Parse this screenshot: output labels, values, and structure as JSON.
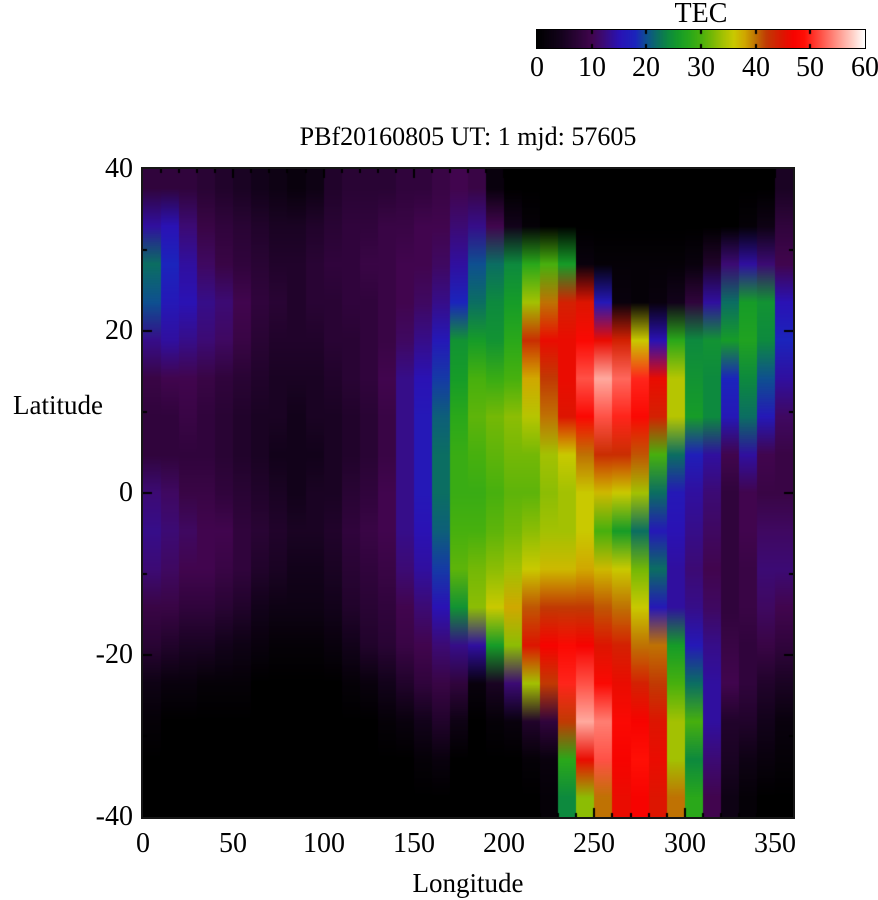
{
  "colorbar": {
    "title": "TEC",
    "ticks": [
      "0",
      "10",
      "20",
      "30",
      "40",
      "50",
      "60"
    ],
    "min": 0,
    "max": 60,
    "stops": [
      [
        0,
        "#000000"
      ],
      [
        4,
        "#12021a"
      ],
      [
        8,
        "#30043c"
      ],
      [
        10,
        "#41054e"
      ],
      [
        12,
        "#3c0a74"
      ],
      [
        15,
        "#2a12b4"
      ],
      [
        18,
        "#1b24bc"
      ],
      [
        20,
        "#0e5090"
      ],
      [
        22,
        "#0b6e62"
      ],
      [
        24,
        "#0d8a3e"
      ],
      [
        26,
        "#169c28"
      ],
      [
        28,
        "#2aa81a"
      ],
      [
        30,
        "#47b00e"
      ],
      [
        32,
        "#74b806"
      ],
      [
        34,
        "#a3c102"
      ],
      [
        36,
        "#c9c900"
      ],
      [
        38,
        "#d0a800"
      ],
      [
        40,
        "#bf7203"
      ],
      [
        42,
        "#c13a03"
      ],
      [
        45,
        "#dd1501"
      ],
      [
        47,
        "#f70300"
      ],
      [
        49,
        "#ff0f05"
      ],
      [
        52,
        "#ff5146"
      ],
      [
        55,
        "#ff9488"
      ],
      [
        58,
        "#ffd3cb"
      ],
      [
        60,
        "#ffffff"
      ]
    ]
  },
  "plot": {
    "title": "PBf20160805  UT: 1  mjd: 57605",
    "xlabel": "Longitude",
    "ylabel": "Latitude",
    "x_ticks": [
      "0",
      "50",
      "100",
      "150",
      "200",
      "250",
      "300",
      "350"
    ],
    "y_ticks": [
      "40",
      "20",
      "0",
      "-20",
      "-40"
    ]
  },
  "chart_data": {
    "type": "heatmap",
    "title": "PBf20160805  UT: 1  mjd: 57605",
    "xlabel": "Longitude",
    "ylabel": "Latitude",
    "colorbar_label": "TEC",
    "xlim": [
      0,
      360
    ],
    "ylim": [
      -40,
      40
    ],
    "zlim": [
      0,
      60
    ],
    "x_major_tick_step": 50,
    "x_minor_tick_step": 10,
    "y_major_tick_step": 20,
    "y_minor_tick_step": 10,
    "lon_centers": [
      5,
      15,
      25,
      35,
      45,
      55,
      65,
      75,
      85,
      95,
      105,
      115,
      125,
      135,
      145,
      155,
      165,
      175,
      185,
      195,
      205,
      215,
      225,
      235,
      245,
      255,
      265,
      275,
      285,
      295,
      305,
      315,
      325,
      335,
      345,
      355
    ],
    "lat_centers": [
      40,
      35,
      30,
      25,
      20,
      15,
      10,
      5,
      0,
      -5,
      -10,
      -15,
      -20,
      -25,
      -30,
      -35,
      -40
    ],
    "values": [
      [
        8,
        8,
        8,
        7,
        6,
        5,
        4,
        3,
        2,
        3,
        6,
        7,
        7,
        7,
        8,
        8,
        9,
        10,
        9,
        2,
        0,
        0,
        0,
        0,
        0,
        0,
        0,
        0,
        0,
        0,
        0,
        0,
        0,
        0,
        0,
        5
      ],
      [
        14,
        15,
        12,
        9,
        8,
        7,
        6,
        5,
        5,
        6,
        7,
        8,
        8,
        9,
        9,
        10,
        10,
        12,
        13,
        10,
        4,
        1,
        0,
        0,
        0,
        0,
        0,
        0,
        0,
        0,
        0,
        0,
        0,
        1,
        3,
        8
      ],
      [
        22,
        18,
        14,
        11,
        9,
        8,
        7,
        6,
        6,
        7,
        8,
        8,
        9,
        9,
        10,
        10,
        11,
        14,
        20,
        22,
        24,
        28,
        30,
        26,
        2,
        1,
        1,
        1,
        1,
        1,
        2,
        6,
        12,
        14,
        12,
        10
      ],
      [
        20,
        16,
        15,
        13,
        12,
        10,
        8,
        7,
        6,
        7,
        7,
        8,
        8,
        9,
        10,
        11,
        13,
        18,
        22,
        24,
        26,
        34,
        40,
        44,
        45,
        16,
        2,
        1,
        2,
        4,
        8,
        14,
        22,
        26,
        25,
        15
      ],
      [
        13,
        14,
        13,
        12,
        11,
        9,
        7,
        6,
        6,
        6,
        7,
        7,
        8,
        9,
        11,
        13,
        16,
        25,
        26,
        25,
        28,
        43,
        46,
        46,
        48,
        46,
        44,
        36,
        15,
        28,
        24,
        25,
        26,
        27,
        24,
        18
      ],
      [
        9,
        10,
        10,
        9,
        8,
        7,
        6,
        5,
        5,
        5,
        6,
        7,
        8,
        10,
        13,
        15,
        19,
        26,
        30,
        29,
        30,
        38,
        42,
        46,
        52,
        56,
        53,
        50,
        46,
        35,
        25,
        24,
        18,
        24,
        20,
        14
      ],
      [
        8,
        8,
        9,
        8,
        7,
        6,
        5,
        5,
        4,
        5,
        5,
        6,
        7,
        9,
        13,
        16,
        21,
        28,
        31,
        32,
        33,
        35,
        40,
        45,
        48,
        52,
        50,
        48,
        44,
        35,
        26,
        24,
        16,
        22,
        16,
        11
      ],
      [
        8,
        8,
        8,
        8,
        7,
        6,
        5,
        4,
        4,
        4,
        5,
        6,
        7,
        9,
        13,
        16,
        22,
        29,
        30,
        31,
        32,
        32,
        34,
        36,
        40,
        43,
        43,
        41,
        30,
        22,
        17,
        14,
        10,
        14,
        10,
        9
      ],
      [
        12,
        11,
        9,
        9,
        8,
        7,
        6,
        5,
        4,
        5,
        5,
        7,
        8,
        10,
        13,
        16,
        22,
        29,
        29,
        30,
        31,
        31,
        33,
        34,
        36,
        37,
        36,
        34,
        22,
        16,
        14,
        12,
        8,
        10,
        9,
        9
      ],
      [
        13,
        12,
        11,
        10,
        10,
        8,
        7,
        6,
        5,
        5,
        6,
        8,
        9,
        10,
        13,
        15,
        21,
        30,
        30,
        31,
        32,
        33,
        34,
        34,
        36,
        30,
        26,
        22,
        16,
        15,
        13,
        11,
        8,
        10,
        11,
        11
      ],
      [
        12,
        11,
        10,
        10,
        9,
        8,
        6,
        5,
        4,
        4,
        5,
        7,
        8,
        9,
        12,
        14,
        19,
        31,
        32,
        33,
        34,
        36,
        37,
        37,
        38,
        37,
        36,
        32,
        22,
        14,
        12,
        10,
        8,
        9,
        12,
        12
      ],
      [
        9,
        9,
        8,
        8,
        7,
        6,
        4,
        3,
        3,
        3,
        4,
        6,
        7,
        8,
        10,
        12,
        15,
        25,
        33,
        36,
        38,
        41,
        42,
        42,
        42,
        41,
        40,
        36,
        16,
        14,
        13,
        11,
        8,
        9,
        11,
        10
      ],
      [
        7,
        6,
        5,
        5,
        4,
        3,
        2,
        1,
        1,
        1,
        2,
        4,
        6,
        7,
        9,
        10,
        12,
        13,
        14,
        26,
        33,
        45,
        47,
        48,
        47,
        45,
        44,
        40,
        40,
        26,
        16,
        13,
        9,
        8,
        9,
        8
      ],
      [
        3,
        2,
        2,
        1,
        1,
        1,
        0,
        0,
        0,
        0,
        0,
        1,
        2,
        4,
        6,
        8,
        9,
        8,
        2,
        5,
        12,
        34,
        42,
        50,
        52,
        48,
        46,
        44,
        42,
        30,
        22,
        14,
        10,
        8,
        6,
        5
      ],
      [
        1,
        0,
        0,
        0,
        0,
        0,
        0,
        0,
        0,
        0,
        0,
        0,
        0,
        1,
        2,
        4,
        6,
        3,
        0,
        1,
        2,
        6,
        8,
        42,
        56,
        54,
        48,
        47,
        45,
        34,
        30,
        14,
        6,
        6,
        4,
        2
      ],
      [
        0,
        0,
        0,
        0,
        0,
        0,
        0,
        0,
        0,
        0,
        0,
        0,
        0,
        0,
        0,
        1,
        2,
        0,
        0,
        0,
        0,
        1,
        2,
        28,
        46,
        52,
        47,
        49,
        46,
        34,
        24,
        12,
        5,
        3,
        2,
        1
      ],
      [
        0,
        0,
        0,
        0,
        0,
        0,
        0,
        0,
        0,
        0,
        0,
        0,
        0,
        0,
        0,
        0,
        0,
        0,
        0,
        0,
        0,
        0,
        1,
        24,
        33,
        40,
        46,
        47,
        45,
        40,
        28,
        10,
        3,
        1,
        0,
        0
      ]
    ]
  }
}
